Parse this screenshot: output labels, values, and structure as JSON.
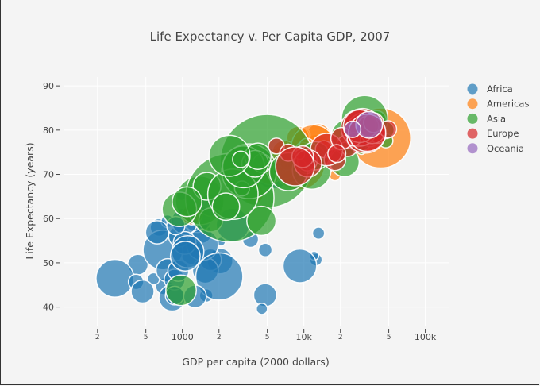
{
  "chart_data": {
    "type": "scatter",
    "title": "Life Expectancy v. Per Capita GDP, 2007",
    "xlabel": "GDP per capita (2000 dollars)",
    "ylabel": "Life Expectancy (years)",
    "x_scale": "log",
    "xlim": [
      105,
      158000
    ],
    "ylim": [
      35.8,
      92
    ],
    "grid": true,
    "legend_position": "top-right",
    "marker_opacity": 0.7,
    "size_field": "population (millions)",
    "x_ticks": [
      {
        "value": 200,
        "label": "2",
        "minor": true
      },
      {
        "value": 500,
        "label": "5",
        "minor": true
      },
      {
        "value": 1000,
        "label": "1000",
        "minor": false
      },
      {
        "value": 2000,
        "label": "2",
        "minor": true
      },
      {
        "value": 5000,
        "label": "5",
        "minor": true
      },
      {
        "value": 10000,
        "label": "10k",
        "minor": false
      },
      {
        "value": 20000,
        "label": "2",
        "minor": true
      },
      {
        "value": 50000,
        "label": "5",
        "minor": true
      },
      {
        "value": 100000,
        "label": "100k",
        "minor": false
      }
    ],
    "y_ticks": [
      {
        "value": 40,
        "label": "40"
      },
      {
        "value": 50,
        "label": "50"
      },
      {
        "value": 60,
        "label": "60"
      },
      {
        "value": 70,
        "label": "70"
      },
      {
        "value": 80,
        "label": "80"
      },
      {
        "value": 90,
        "label": "90"
      }
    ],
    "series": [
      {
        "name": "Africa",
        "color": "#1f77b4",
        "points": [
          [
            6223,
            72.3,
            33.3
          ],
          [
            4797,
            42.7,
            12.4
          ],
          [
            1441,
            56.7,
            8.1
          ],
          [
            12570,
            50.7,
            1.6
          ],
          [
            1217,
            52.3,
            14.3
          ],
          [
            430,
            49.6,
            8.4
          ],
          [
            2042,
            50.4,
            17.7
          ],
          [
            706,
            44.7,
            4.4
          ],
          [
            1704,
            50.7,
            10.2
          ],
          [
            986,
            65.2,
            0.71
          ],
          [
            278,
            46.5,
            64.6
          ],
          [
            3633,
            55.3,
            3.8
          ],
          [
            1545,
            48.3,
            18.0
          ],
          [
            2082,
            54.8,
            0.5
          ],
          [
            5581,
            71.3,
            80.3
          ],
          [
            12154,
            51.6,
            0.55
          ],
          [
            641,
            58.0,
            4.9
          ],
          [
            691,
            52.9,
            76.5
          ],
          [
            13206,
            56.7,
            1.45
          ],
          [
            753,
            59.4,
            1.7
          ],
          [
            1328,
            60.0,
            22.9
          ],
          [
            943,
            56.0,
            9.9
          ],
          [
            579,
            46.4,
            1.47
          ],
          [
            1463,
            54.1,
            35.6
          ],
          [
            1569,
            42.6,
            2.0
          ],
          [
            415,
            45.7,
            3.2
          ],
          [
            12057,
            74.0,
            6.0
          ],
          [
            1045,
            59.4,
            19.2
          ],
          [
            759,
            48.3,
            13.3
          ],
          [
            1043,
            54.5,
            12.0
          ],
          [
            1803,
            64.2,
            3.3
          ],
          [
            10957,
            72.8,
            1.25
          ],
          [
            3820,
            71.2,
            33.8
          ],
          [
            824,
            42.1,
            20.0
          ],
          [
            4811,
            52.9,
            2.1
          ],
          [
            620,
            56.9,
            12.9
          ],
          [
            2014,
            46.9,
            135.0
          ],
          [
            7670,
            76.4,
            0.8
          ],
          [
            863,
            46.2,
            8.9
          ],
          [
            1598,
            65.5,
            0.2
          ],
          [
            1712,
            63.1,
            12.3
          ],
          [
            863,
            42.6,
            6.1
          ],
          [
            926,
            48.2,
            9.1
          ],
          [
            9270,
            49.3,
            44.0
          ],
          [
            2602,
            58.6,
            42.3
          ],
          [
            4513,
            39.6,
            1.1
          ],
          [
            1107,
            52.5,
            38.1
          ],
          [
            883,
            58.4,
            5.7
          ],
          [
            7093,
            73.9,
            10.3
          ],
          [
            1056,
            51.5,
            29.2
          ],
          [
            1271,
            42.4,
            11.7
          ],
          [
            470,
            43.5,
            12.3
          ]
        ]
      },
      {
        "name": "Americas",
        "color": "#ff7f0e",
        "points": [
          [
            12779,
            75.3,
            40.3
          ],
          [
            3822,
            65.6,
            9.1
          ],
          [
            9066,
            72.4,
            190
          ],
          [
            36319,
            80.7,
            33.4
          ],
          [
            13172,
            78.6,
            16.3
          ],
          [
            7007,
            72.9,
            44.2
          ],
          [
            9645,
            78.8,
            4.1
          ],
          [
            8948,
            78.3,
            11.4
          ],
          [
            6025,
            72.2,
            9.3
          ],
          [
            6873,
            75.0,
            13.8
          ],
          [
            5728,
            71.9,
            6.9
          ],
          [
            5186,
            70.3,
            12.6
          ],
          [
            1202,
            60.9,
            8.5
          ],
          [
            3548,
            70.2,
            7.5
          ],
          [
            7321,
            72.6,
            2.8
          ],
          [
            11978,
            76.2,
            108.7
          ],
          [
            2749,
            72.9,
            5.7
          ],
          [
            9809,
            75.5,
            3.2
          ],
          [
            4173,
            71.8,
            6.7
          ],
          [
            7409,
            71.4,
            28.7
          ],
          [
            19329,
            78.7,
            3.9
          ],
          [
            18009,
            69.8,
            1.06
          ],
          [
            42952,
            78.2,
            301
          ],
          [
            10611,
            76.4,
            3.4
          ],
          [
            11416,
            73.7,
            26.1
          ]
        ]
      },
      {
        "name": "Asia",
        "color": "#2ca02c",
        "points": [
          [
            975,
            43.8,
            31.9
          ],
          [
            29796,
            75.6,
            0.7
          ],
          [
            1391,
            64.1,
            150.4
          ],
          [
            1714,
            59.7,
            14.1
          ],
          [
            4959,
            73.0,
            1318
          ],
          [
            39725,
            82.2,
            6.98
          ],
          [
            2452,
            64.7,
            1110
          ],
          [
            3541,
            70.7,
            223.5
          ],
          [
            11606,
            71.0,
            69.5
          ],
          [
            4471,
            59.5,
            27.5
          ],
          [
            25523,
            80.7,
            6.4
          ],
          [
            31656,
            82.6,
            127.5
          ],
          [
            4519,
            72.5,
            6.05
          ],
          [
            1593,
            67.3,
            23.3
          ],
          [
            23348,
            78.6,
            49.0
          ],
          [
            47307,
            77.6,
            2.5
          ],
          [
            10461,
            72.0,
            3.9
          ],
          [
            12452,
            74.2,
            24.8
          ],
          [
            3096,
            66.8,
            2.9
          ],
          [
            944,
            62.1,
            47.8
          ],
          [
            1091,
            63.8,
            28.9
          ],
          [
            22316,
            75.6,
            3.2
          ],
          [
            2606,
            65.5,
            169.3
          ],
          [
            3190,
            71.7,
            91.1
          ],
          [
            21655,
            72.8,
            27.6
          ],
          [
            47143,
            80.0,
            4.55
          ],
          [
            3970,
            72.4,
            20.4
          ],
          [
            4185,
            74.1,
            19.3
          ],
          [
            28718,
            78.4,
            23.2
          ],
          [
            7458,
            70.6,
            65.1
          ],
          [
            2442,
            74.2,
            85.3
          ],
          [
            3025,
            73.4,
            4.0
          ],
          [
            2281,
            62.7,
            22.2
          ]
        ]
      },
      {
        "name": "Europe",
        "color": "#d62728",
        "points": [
          [
            5937,
            76.4,
            3.6
          ],
          [
            36126,
            79.8,
            8.2
          ],
          [
            33693,
            79.4,
            10.4
          ],
          [
            7446,
            74.9,
            4.6
          ],
          [
            10681,
            73.0,
            7.3
          ],
          [
            14619,
            75.7,
            4.5
          ],
          [
            22833,
            76.5,
            10.2
          ],
          [
            35278,
            78.3,
            5.5
          ],
          [
            33207,
            79.3,
            5.2
          ],
          [
            30470,
            80.7,
            61.1
          ],
          [
            32170,
            79.4,
            82.4
          ],
          [
            27538,
            79.5,
            10.7
          ],
          [
            18009,
            73.3,
            10.0
          ],
          [
            36181,
            81.8,
            0.3
          ],
          [
            40676,
            78.9,
            4.1
          ],
          [
            28570,
            80.5,
            58.1
          ],
          [
            9254,
            74.5,
            0.68
          ],
          [
            36798,
            79.8,
            16.6
          ],
          [
            49357,
            80.2,
            4.6
          ],
          [
            15390,
            75.6,
            38.5
          ],
          [
            20510,
            78.1,
            10.6
          ],
          [
            10808,
            72.5,
            22.3
          ],
          [
            9787,
            74.0,
            10.2
          ],
          [
            18678,
            74.7,
            5.4
          ],
          [
            25768,
            77.9,
            2.0
          ],
          [
            28821,
            80.9,
            40.4
          ],
          [
            33860,
            80.9,
            9.0
          ],
          [
            37506,
            81.7,
            7.6
          ],
          [
            8458,
            71.8,
            71.2
          ],
          [
            33203,
            79.4,
            60.8
          ]
        ]
      },
      {
        "name": "Oceania",
        "color": "#9467bd",
        "points": [
          [
            34435,
            81.2,
            20.4
          ],
          [
            25185,
            80.2,
            4.1
          ]
        ]
      }
    ]
  }
}
